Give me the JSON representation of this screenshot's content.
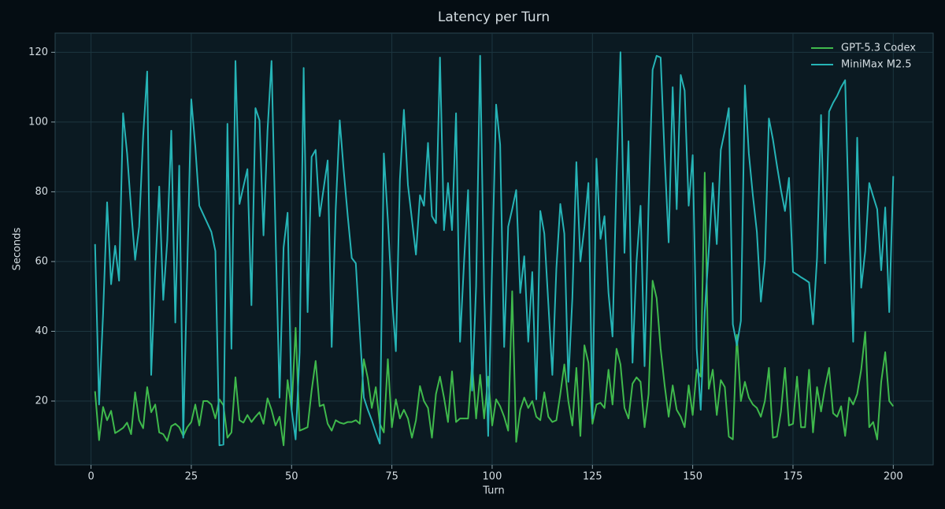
{
  "chart_data": {
    "type": "line",
    "title": "Latency per Turn",
    "x_label": "Turn",
    "y_label": "Seconds",
    "x": [
      1,
      2,
      3,
      4,
      5,
      6,
      7,
      8,
      9,
      10,
      11,
      12,
      13,
      14,
      15,
      16,
      17,
      18,
      19,
      20,
      21,
      22,
      23,
      24,
      25,
      26,
      27,
      28,
      29,
      30,
      31,
      32,
      33,
      34,
      35,
      36,
      37,
      38,
      39,
      40,
      41,
      42,
      43,
      44,
      45,
      46,
      47,
      48,
      49,
      50,
      51,
      52,
      53,
      54,
      55,
      56,
      57,
      58,
      59,
      60,
      61,
      62,
      63,
      64,
      65,
      66,
      67,
      68,
      69,
      70,
      71,
      72,
      73,
      74,
      75,
      76,
      77,
      78,
      79,
      80,
      81,
      82,
      83,
      84,
      85,
      86,
      87,
      88,
      89,
      90,
      91,
      92,
      93,
      94,
      95,
      96,
      97,
      98,
      99,
      100,
      101,
      102,
      103,
      104,
      105,
      106,
      107,
      108,
      109,
      110,
      111,
      112,
      113,
      114,
      115,
      116,
      117,
      118,
      119,
      120,
      121,
      122,
      123,
      124,
      125,
      126,
      127,
      128,
      129,
      130,
      131,
      132,
      133,
      134,
      135,
      136,
      137,
      138,
      139,
      140,
      141,
      142,
      143,
      144,
      145,
      146,
      147,
      148,
      149,
      150,
      151,
      152,
      153,
      154,
      155,
      156,
      157,
      158,
      159,
      160,
      161,
      162,
      163,
      164,
      165,
      166,
      167,
      168,
      169,
      170,
      171,
      172,
      173,
      174,
      175,
      176,
      177,
      178,
      179,
      180,
      181,
      182,
      183,
      184,
      185,
      186,
      187,
      188,
      189,
      190,
      191,
      192,
      193,
      194,
      195,
      196,
      197,
      198,
      199,
      200
    ],
    "series": [
      {
        "name": "GPT-5.3 Codex",
        "color": "#3fb94c",
        "values": [
          22.8,
          8.8,
          18.3,
          14.5,
          17.2,
          10.8,
          11.5,
          12.3,
          13.8,
          10.5,
          22.5,
          14.5,
          12.2,
          24,
          16.8,
          19,
          11,
          10.5,
          8.6,
          12.8,
          13.5,
          12.5,
          10,
          12.5,
          14,
          19,
          13,
          20,
          20,
          19,
          15,
          20.5,
          18.8,
          9.5,
          11,
          26.8,
          14.5,
          13.8,
          16,
          14,
          15.5,
          16.8,
          13.5,
          20.8,
          17.5,
          13,
          15.5,
          7.3,
          26,
          17.5,
          41,
          11.5,
          12,
          12.5,
          23,
          31.5,
          18.5,
          19,
          13.5,
          11.5,
          14.5,
          13.8,
          13.5,
          14,
          14,
          14.5,
          13.5,
          32,
          26.5,
          18,
          24,
          13.5,
          11,
          32,
          12.5,
          20.5,
          15,
          17.5,
          15,
          9.5,
          14.5,
          24.3,
          20,
          18,
          9.5,
          22,
          27,
          21,
          14,
          28.5,
          14,
          15,
          15,
          15,
          31,
          15,
          27.5,
          15,
          27,
          13,
          20.5,
          18.5,
          15.5,
          11.5,
          51.5,
          8.3,
          17.5,
          21,
          18,
          20,
          15.5,
          14.5,
          22.5,
          15.5,
          14,
          14.5,
          22,
          30.5,
          20,
          13,
          29.5,
          10,
          36,
          31,
          13.5,
          19,
          19.5,
          18,
          29,
          19,
          35,
          30.5,
          18,
          15,
          25,
          26.8,
          25.5,
          12.5,
          22,
          54.5,
          49.5,
          35,
          24.5,
          15.5,
          24.5,
          17.5,
          15.5,
          12.5,
          24.5,
          16,
          29,
          27,
          85.5,
          23.5,
          29,
          16,
          26,
          24,
          9.8,
          9,
          39,
          20,
          25.5,
          21,
          19,
          18,
          15.5,
          20,
          29.5,
          9.5,
          9.8,
          17,
          29.5,
          13,
          13.5,
          27,
          12.5,
          12.5,
          29,
          11,
          24,
          17,
          24,
          29.5,
          16.5,
          15.5,
          18.5,
          10,
          21,
          19,
          22,
          29,
          39.8,
          12.5,
          14,
          9,
          25.5,
          34,
          20,
          18.5
        ]
      },
      {
        "name": "MiniMax M2.5",
        "color": "#26b4b6",
        "values": [
          65,
          19,
          45,
          77,
          53.5,
          64.5,
          54.5,
          102.5,
          91,
          75,
          60.5,
          70,
          96,
          114.5,
          27.5,
          57,
          81.5,
          49,
          66,
          97.5,
          42.5,
          87.5,
          9.5,
          58,
          106.5,
          93,
          76,
          73.5,
          71,
          68.5,
          63,
          7.3,
          7.5,
          99.5,
          35,
          117.5,
          76.5,
          81.5,
          86.5,
          47.5,
          104,
          100.5,
          67.5,
          97.5,
          117.5,
          68,
          21,
          64,
          74,
          17.5,
          9,
          34,
          115.5,
          45.5,
          90,
          92,
          73,
          81,
          89,
          35.5,
          75,
          100.5,
          86,
          73,
          61,
          59.5,
          40,
          21,
          17.5,
          14.5,
          11,
          7.8,
          91,
          72,
          50,
          34.3,
          83.5,
          103.5,
          82,
          72,
          62,
          79,
          76,
          94,
          73,
          71,
          118.5,
          69,
          82.5,
          69,
          102.5,
          37,
          60,
          80.5,
          23,
          53,
          119,
          51,
          10,
          60,
          105,
          93.5,
          35.5,
          70,
          75,
          80.5,
          51,
          61.5,
          37,
          57,
          20.5,
          74.5,
          68,
          48,
          27.5,
          58,
          76.5,
          68,
          25.5,
          49.5,
          88.5,
          60,
          70,
          82.5,
          15,
          89.5,
          66.5,
          73,
          51,
          38.5,
          84.5,
          120,
          62.5,
          94.5,
          31,
          60,
          76,
          30,
          76,
          115,
          119,
          118.5,
          90,
          65.5,
          110,
          75,
          113.5,
          109,
          76,
          90.5,
          35,
          17.5,
          45.5,
          63,
          82.5,
          65,
          92,
          97.5,
          104,
          42,
          36,
          43,
          110.5,
          91,
          79,
          68.5,
          48.5,
          60.5,
          101,
          95,
          87.5,
          80.5,
          74.5,
          84,
          57,
          56.3,
          55.5,
          54.8,
          54,
          42,
          61,
          102,
          59.5,
          103,
          105.5,
          107.5,
          110,
          112,
          70,
          37,
          95.5,
          52.5,
          63,
          82.5,
          78.7,
          75,
          57.5,
          75.5,
          45.5,
          84.5
        ]
      }
    ],
    "xlim": [
      -8.95,
      209.95
    ],
    "xticks": [
      0,
      25,
      50,
      75,
      100,
      125,
      150,
      175,
      200
    ],
    "ylim": [
      1.7,
      125.5
    ],
    "yticks": [
      20,
      40,
      60,
      80,
      100,
      120
    ],
    "grid": true,
    "legend": "upper right"
  }
}
